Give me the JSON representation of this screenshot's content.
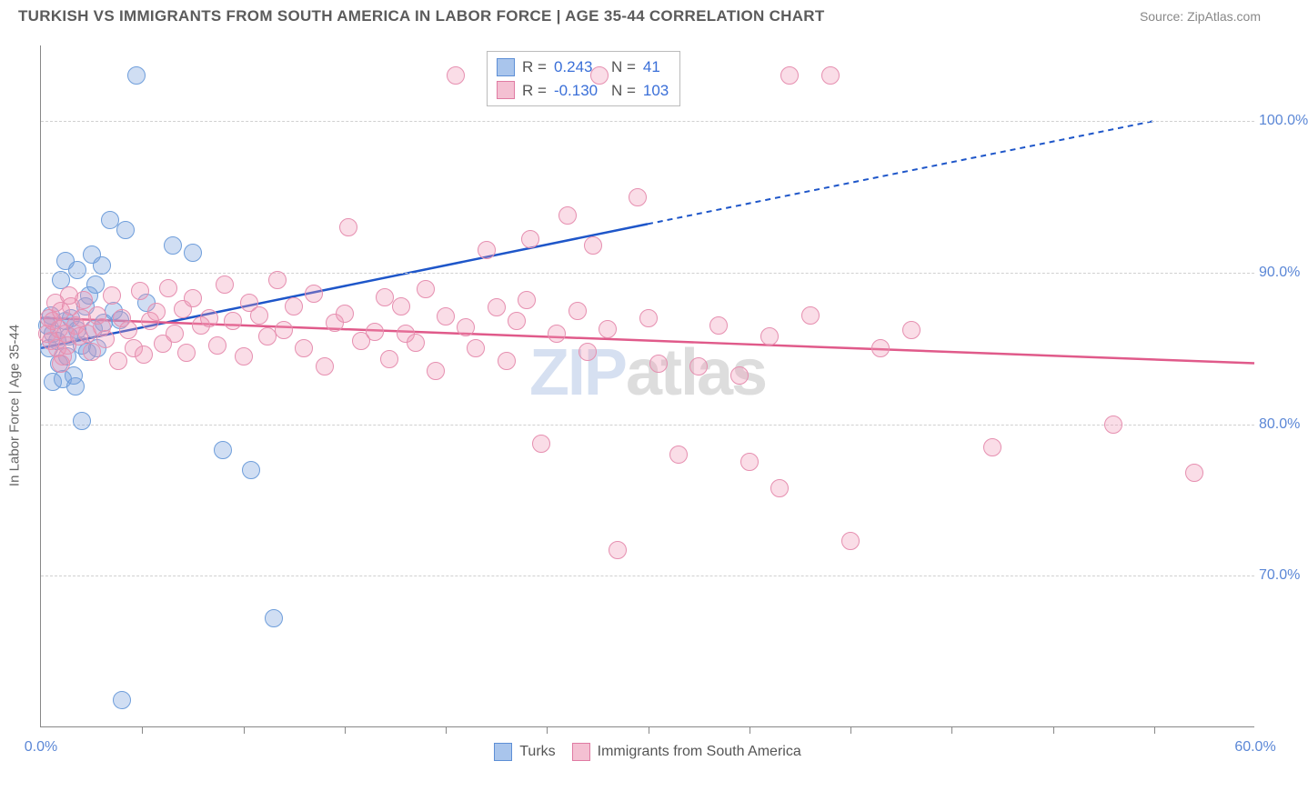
{
  "header": {
    "title": "TURKISH VS IMMIGRANTS FROM SOUTH AMERICA IN LABOR FORCE | AGE 35-44 CORRELATION CHART",
    "source": "Source: ZipAtlas.com"
  },
  "watermark": {
    "part1": "ZIP",
    "part2": "atlas"
  },
  "chart": {
    "type": "scatter",
    "ylabel": "In Labor Force | Age 35-44",
    "background_color": "#ffffff",
    "grid_color": "#d0d0d0",
    "axis_color": "#888888",
    "tick_label_color": "#5b87d6",
    "tick_fontsize": 16,
    "xlim": [
      0,
      60
    ],
    "ylim": [
      60,
      105
    ],
    "xticks_minor_step": 5,
    "xtick_labels": [
      {
        "x": 0,
        "label": "0.0%"
      },
      {
        "x": 60,
        "label": "60.0%"
      }
    ],
    "ytick_labels": [
      {
        "y": 70,
        "label": "70.0%"
      },
      {
        "y": 80,
        "label": "80.0%"
      },
      {
        "y": 90,
        "label": "90.0%"
      },
      {
        "y": 100,
        "label": "100.0%"
      }
    ],
    "series": [
      {
        "name": "Turks",
        "fill_color": "rgba(120,160,220,0.35)",
        "stroke_color": "#6f9edb",
        "swatch_fill": "#a9c5ec",
        "swatch_border": "#5e8fd6",
        "trend_color": "#1e56c9",
        "marker_radius": 10,
        "R": "0.243",
        "N": "41",
        "trend": {
          "x1": 0,
          "y1": 85.0,
          "x2_solid": 30,
          "y2_solid": 93.2,
          "x2": 55,
          "y2": 100.0
        },
        "points": [
          {
            "x": 0.3,
            "y": 86.5
          },
          {
            "x": 0.4,
            "y": 85.0
          },
          {
            "x": 0.5,
            "y": 87.2
          },
          {
            "x": 0.6,
            "y": 86.0
          },
          {
            "x": 0.8,
            "y": 85.5
          },
          {
            "x": 0.9,
            "y": 84.0
          },
          {
            "x": 1.0,
            "y": 89.5
          },
          {
            "x": 1.1,
            "y": 83.0
          },
          {
            "x": 1.2,
            "y": 86.8
          },
          {
            "x": 1.2,
            "y": 90.8
          },
          {
            "x": 1.3,
            "y": 84.5
          },
          {
            "x": 1.4,
            "y": 85.8
          },
          {
            "x": 1.5,
            "y": 87.0
          },
          {
            "x": 1.6,
            "y": 83.2
          },
          {
            "x": 1.7,
            "y": 82.5
          },
          {
            "x": 1.8,
            "y": 86.2
          },
          {
            "x": 1.8,
            "y": 90.2
          },
          {
            "x": 2.0,
            "y": 85.2
          },
          {
            "x": 2.0,
            "y": 80.2
          },
          {
            "x": 2.2,
            "y": 87.8
          },
          {
            "x": 2.3,
            "y": 84.8
          },
          {
            "x": 2.4,
            "y": 88.5
          },
          {
            "x": 2.5,
            "y": 91.2
          },
          {
            "x": 2.6,
            "y": 86.3
          },
          {
            "x": 2.7,
            "y": 89.2
          },
          {
            "x": 2.8,
            "y": 85.0
          },
          {
            "x": 3.0,
            "y": 90.5
          },
          {
            "x": 3.1,
            "y": 86.7
          },
          {
            "x": 3.4,
            "y": 93.5
          },
          {
            "x": 3.6,
            "y": 87.5
          },
          {
            "x": 3.9,
            "y": 86.9
          },
          {
            "x": 4.2,
            "y": 92.8
          },
          {
            "x": 4.7,
            "y": 103.0
          },
          {
            "x": 5.2,
            "y": 88.0
          },
          {
            "x": 6.5,
            "y": 91.8
          },
          {
            "x": 7.5,
            "y": 91.3
          },
          {
            "x": 9.0,
            "y": 78.3
          },
          {
            "x": 10.4,
            "y": 77.0
          },
          {
            "x": 11.5,
            "y": 67.2
          },
          {
            "x": 4.0,
            "y": 61.8
          },
          {
            "x": 0.6,
            "y": 82.8
          }
        ]
      },
      {
        "name": "Immigrants from South America",
        "fill_color": "rgba(240,150,180,0.32)",
        "stroke_color": "#e68fb0",
        "swatch_fill": "#f4c0d2",
        "swatch_border": "#e07ba3",
        "trend_color": "#e05a8a",
        "marker_radius": 10,
        "R": "-0.130",
        "N": "103",
        "trend": {
          "x1": 0,
          "y1": 87.0,
          "x2_solid": 60,
          "y2_solid": 84.0,
          "x2": 60,
          "y2": 84.0
        },
        "points": [
          {
            "x": 0.3,
            "y": 86.0
          },
          {
            "x": 0.4,
            "y": 87.0
          },
          {
            "x": 0.5,
            "y": 85.5
          },
          {
            "x": 0.6,
            "y": 86.8
          },
          {
            "x": 0.7,
            "y": 88.0
          },
          {
            "x": 0.8,
            "y": 85.0
          },
          {
            "x": 0.9,
            "y": 86.3
          },
          {
            "x": 1.0,
            "y": 87.5
          },
          {
            "x": 1.1,
            "y": 84.5
          },
          {
            "x": 1.2,
            "y": 86.0
          },
          {
            "x": 1.3,
            "y": 85.2
          },
          {
            "x": 1.5,
            "y": 87.8
          },
          {
            "x": 1.7,
            "y": 86.5
          },
          {
            "x": 1.9,
            "y": 85.8
          },
          {
            "x": 2.1,
            "y": 88.2
          },
          {
            "x": 2.3,
            "y": 86.0
          },
          {
            "x": 2.5,
            "y": 84.8
          },
          {
            "x": 2.8,
            "y": 87.2
          },
          {
            "x": 3.0,
            "y": 86.4
          },
          {
            "x": 3.2,
            "y": 85.6
          },
          {
            "x": 3.5,
            "y": 88.5
          },
          {
            "x": 3.8,
            "y": 84.2
          },
          {
            "x": 4.0,
            "y": 87.0
          },
          {
            "x": 4.3,
            "y": 86.2
          },
          {
            "x": 4.6,
            "y": 85.0
          },
          {
            "x": 4.9,
            "y": 88.8
          },
          {
            "x": 5.1,
            "y": 84.6
          },
          {
            "x": 5.4,
            "y": 86.8
          },
          {
            "x": 5.7,
            "y": 87.4
          },
          {
            "x": 6.0,
            "y": 85.3
          },
          {
            "x": 6.3,
            "y": 89.0
          },
          {
            "x": 6.6,
            "y": 86.0
          },
          {
            "x": 7.0,
            "y": 87.6
          },
          {
            "x": 7.2,
            "y": 84.7
          },
          {
            "x": 7.5,
            "y": 88.3
          },
          {
            "x": 7.9,
            "y": 86.5
          },
          {
            "x": 8.3,
            "y": 87.0
          },
          {
            "x": 8.7,
            "y": 85.2
          },
          {
            "x": 9.1,
            "y": 89.2
          },
          {
            "x": 9.5,
            "y": 86.8
          },
          {
            "x": 10.0,
            "y": 84.5
          },
          {
            "x": 10.3,
            "y": 88.0
          },
          {
            "x": 10.8,
            "y": 87.2
          },
          {
            "x": 11.2,
            "y": 85.8
          },
          {
            "x": 11.7,
            "y": 89.5
          },
          {
            "x": 12.0,
            "y": 86.2
          },
          {
            "x": 12.5,
            "y": 87.8
          },
          {
            "x": 13.0,
            "y": 85.0
          },
          {
            "x": 13.5,
            "y": 88.6
          },
          {
            "x": 14.0,
            "y": 83.8
          },
          {
            "x": 14.5,
            "y": 86.7
          },
          {
            "x": 15.0,
            "y": 87.3
          },
          {
            "x": 15.2,
            "y": 93.0
          },
          {
            "x": 15.8,
            "y": 85.5
          },
          {
            "x": 16.5,
            "y": 86.1
          },
          {
            "x": 17.0,
            "y": 88.4
          },
          {
            "x": 17.2,
            "y": 84.3
          },
          {
            "x": 17.8,
            "y": 87.8
          },
          {
            "x": 18.0,
            "y": 86.0
          },
          {
            "x": 18.5,
            "y": 85.4
          },
          {
            "x": 19.0,
            "y": 88.9
          },
          {
            "x": 19.5,
            "y": 83.5
          },
          {
            "x": 20.0,
            "y": 87.1
          },
          {
            "x": 20.5,
            "y": 103.0
          },
          {
            "x": 21.0,
            "y": 86.4
          },
          {
            "x": 21.5,
            "y": 85.0
          },
          {
            "x": 22.0,
            "y": 91.5
          },
          {
            "x": 22.5,
            "y": 87.7
          },
          {
            "x": 23.0,
            "y": 84.2
          },
          {
            "x": 23.5,
            "y": 86.8
          },
          {
            "x": 24.0,
            "y": 88.2
          },
          {
            "x": 24.2,
            "y": 92.2
          },
          {
            "x": 24.7,
            "y": 78.7
          },
          {
            "x": 25.5,
            "y": 86.0
          },
          {
            "x": 26.0,
            "y": 93.8
          },
          {
            "x": 26.5,
            "y": 87.5
          },
          {
            "x": 27.0,
            "y": 84.8
          },
          {
            "x": 27.3,
            "y": 91.8
          },
          {
            "x": 27.6,
            "y": 103.0
          },
          {
            "x": 28.0,
            "y": 86.3
          },
          {
            "x": 28.5,
            "y": 71.7
          },
          {
            "x": 29.5,
            "y": 95.0
          },
          {
            "x": 30.0,
            "y": 87.0
          },
          {
            "x": 30.5,
            "y": 84.0
          },
          {
            "x": 31.5,
            "y": 78.0
          },
          {
            "x": 32.5,
            "y": 83.8
          },
          {
            "x": 33.5,
            "y": 86.5
          },
          {
            "x": 34.5,
            "y": 83.2
          },
          {
            "x": 35.0,
            "y": 77.5
          },
          {
            "x": 36.0,
            "y": 85.8
          },
          {
            "x": 36.5,
            "y": 75.8
          },
          {
            "x": 37.0,
            "y": 103.0
          },
          {
            "x": 38.0,
            "y": 87.2
          },
          {
            "x": 39.0,
            "y": 103.0
          },
          {
            "x": 40.0,
            "y": 72.3
          },
          {
            "x": 41.5,
            "y": 85.0
          },
          {
            "x": 43.0,
            "y": 86.2
          },
          {
            "x": 47.0,
            "y": 78.5
          },
          {
            "x": 53.0,
            "y": 80.0
          },
          {
            "x": 57.0,
            "y": 76.8
          },
          {
            "x": 1.0,
            "y": 84.0
          },
          {
            "x": 1.4,
            "y": 88.5
          },
          {
            "x": 2.0,
            "y": 87.0
          }
        ]
      }
    ]
  }
}
